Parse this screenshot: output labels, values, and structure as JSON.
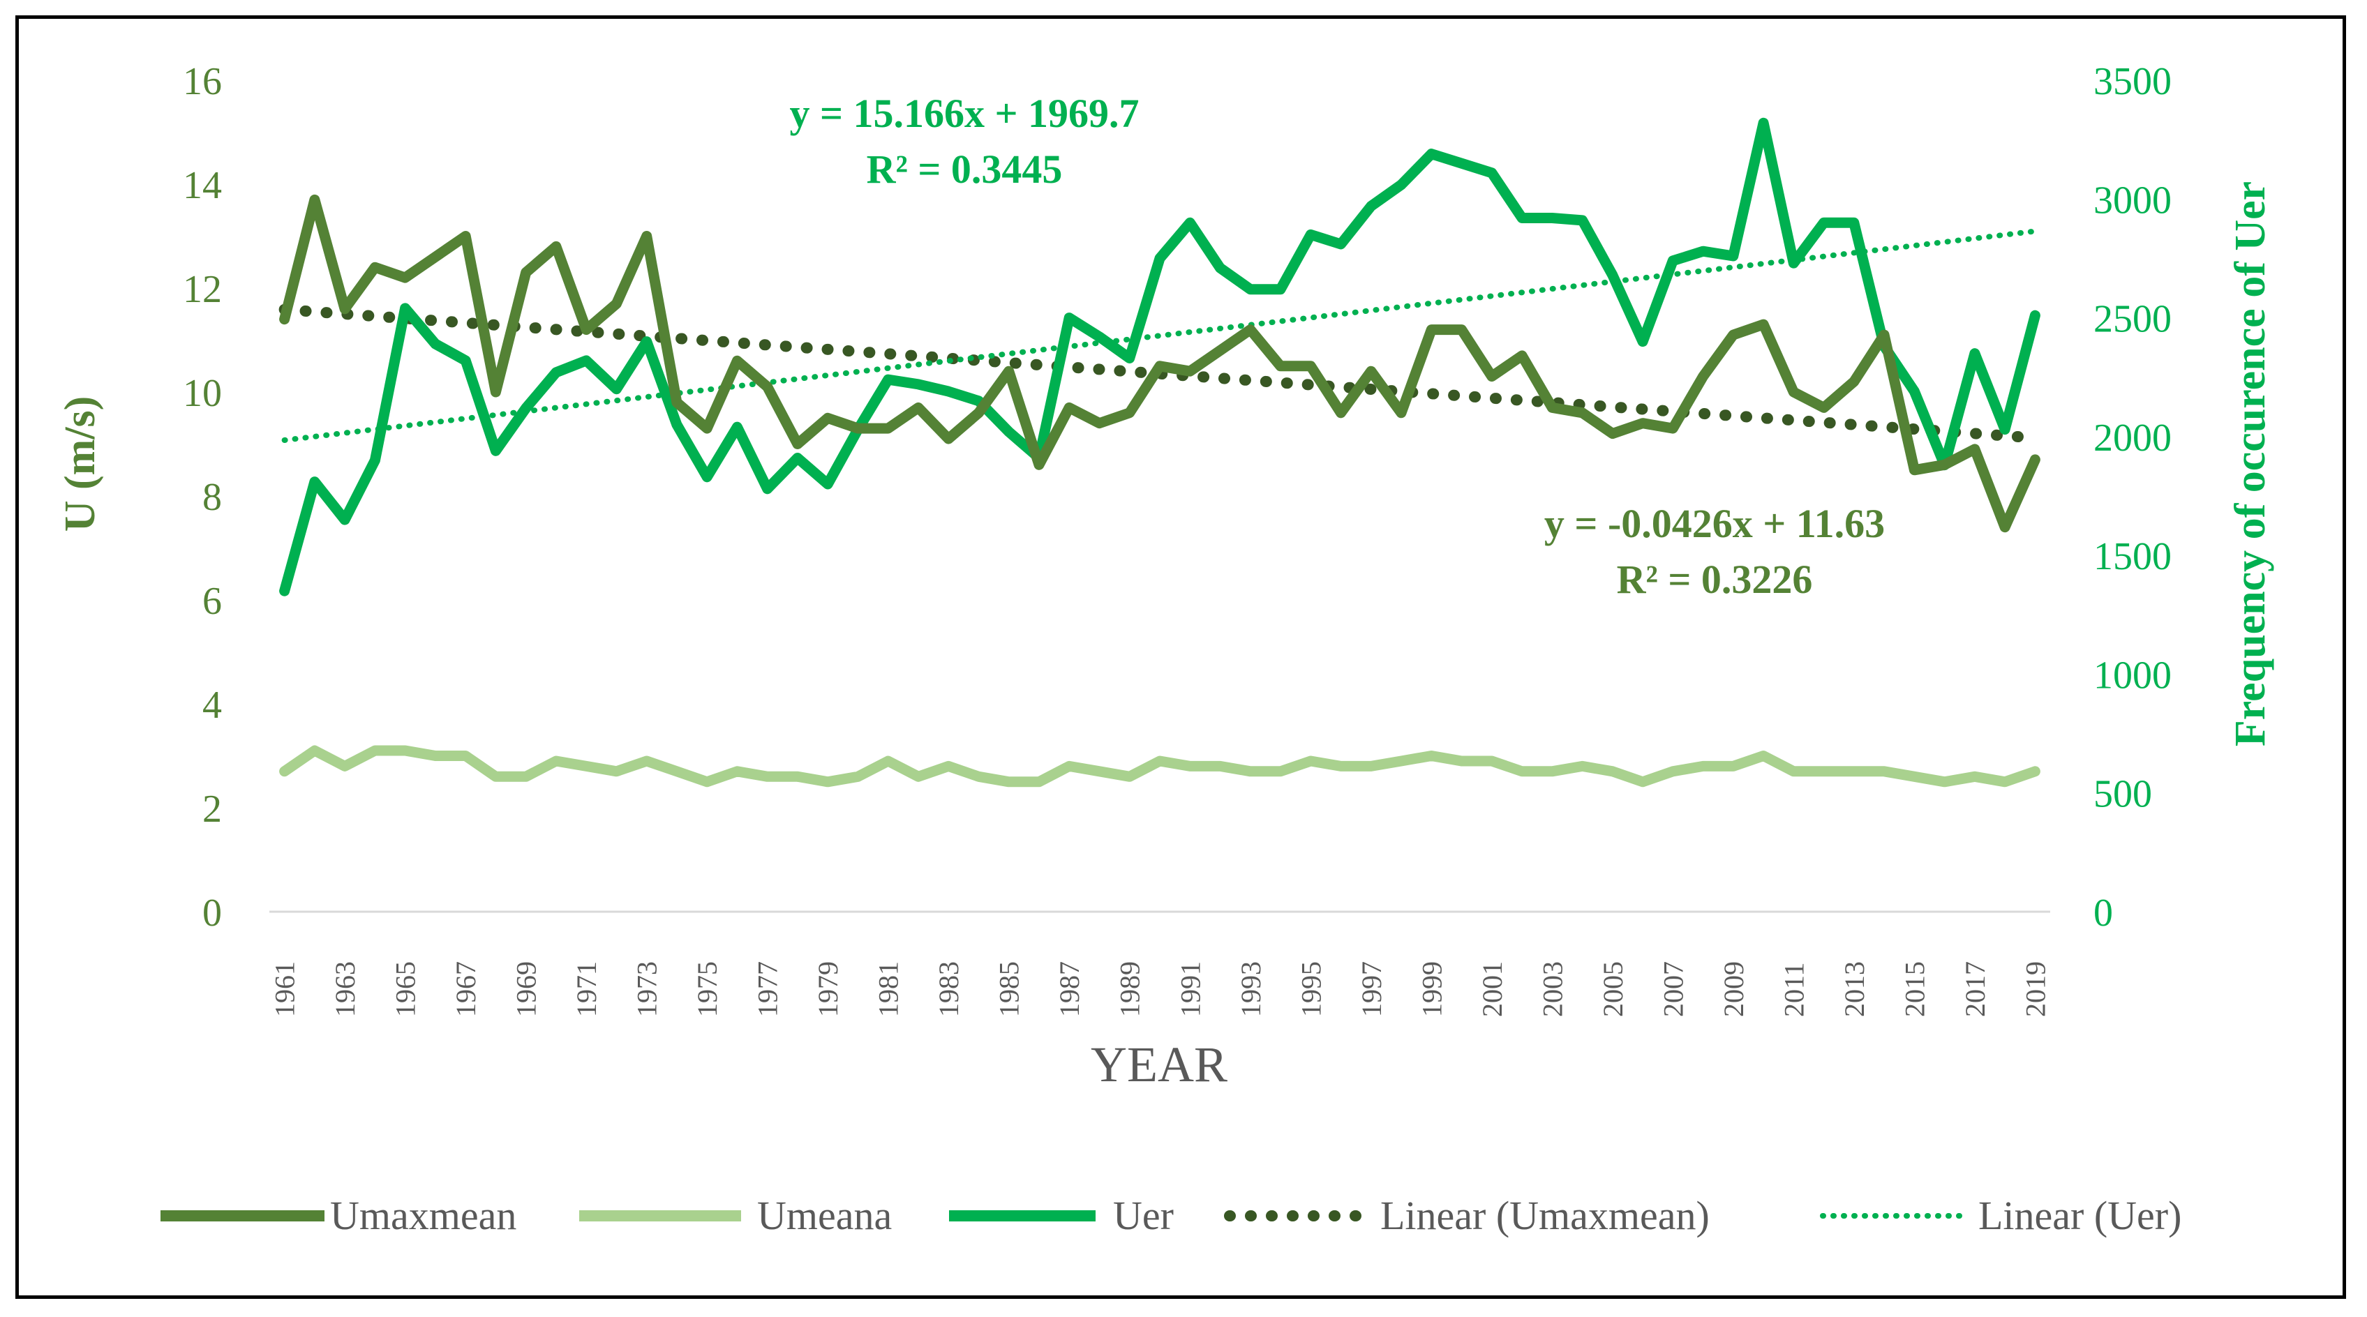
{
  "colors": {
    "umaxmean": "#548235",
    "umeana": "#a9d18e",
    "uer": "#00b050",
    "axis_left_text": "#548235",
    "axis_right_text": "#00b050",
    "axis_x_text": "#595959",
    "axis_line": "#d9d9d9"
  },
  "chart_data": {
    "type": "line",
    "xlabel": "YEAR",
    "ylabel_left": "U (m/s)",
    "ylabel_right": "Frequency of occurence of Uer",
    "ylim_left": [
      0,
      16
    ],
    "ylim_right": [
      0,
      3500
    ],
    "y_ticks_left": [
      "0",
      "2",
      "4",
      "6",
      "8",
      "10",
      "12",
      "14",
      "16"
    ],
    "y_ticks_right": [
      "0",
      "500",
      "1000",
      "1500",
      "2000",
      "2500",
      "3000",
      "3500"
    ],
    "x_tick_labels": [
      "1961",
      "1963",
      "1965",
      "1967",
      "1969",
      "1971",
      "1973",
      "1975",
      "1977",
      "1979",
      "1981",
      "1983",
      "1985",
      "1987",
      "1989",
      "1991",
      "1993",
      "1995",
      "1997",
      "1999",
      "2001",
      "2003",
      "2005",
      "2007",
      "2009",
      "2011",
      "2013",
      "2015",
      "2017",
      "2019"
    ],
    "x": [
      1961,
      1962,
      1963,
      1964,
      1965,
      1966,
      1967,
      1968,
      1969,
      1970,
      1971,
      1972,
      1973,
      1974,
      1975,
      1976,
      1977,
      1978,
      1979,
      1980,
      1981,
      1982,
      1983,
      1984,
      1985,
      1986,
      1987,
      1988,
      1989,
      1990,
      1991,
      1992,
      1993,
      1994,
      1995,
      1996,
      1997,
      1998,
      1999,
      2000,
      2001,
      2002,
      2003,
      2004,
      2005,
      2006,
      2007,
      2008,
      2009,
      2010,
      2011,
      2012,
      2013,
      2014,
      2015,
      2016,
      2017,
      2018,
      2019
    ],
    "series": [
      {
        "name": "Umaxmean",
        "axis": "left",
        "values": [
          11.4,
          13.7,
          11.6,
          12.4,
          12.2,
          12.6,
          13.0,
          10.0,
          12.3,
          12.8,
          11.2,
          11.7,
          13.0,
          9.8,
          9.3,
          10.6,
          10.1,
          9.0,
          9.5,
          9.3,
          9.3,
          9.7,
          9.1,
          9.6,
          10.4,
          8.6,
          9.7,
          9.4,
          9.6,
          10.5,
          10.4,
          10.8,
          11.2,
          10.5,
          10.5,
          9.6,
          10.4,
          9.6,
          11.2,
          11.2,
          10.3,
          10.7,
          9.7,
          9.6,
          9.2,
          9.4,
          9.3,
          10.3,
          11.1,
          11.3,
          10.0,
          9.7,
          10.2,
          11.1,
          8.5,
          8.6,
          8.9,
          7.4,
          8.7
        ]
      },
      {
        "name": "Umeana",
        "axis": "left",
        "values": [
          2.7,
          3.1,
          2.8,
          3.1,
          3.1,
          3.0,
          3.0,
          2.6,
          2.6,
          2.9,
          2.8,
          2.7,
          2.9,
          2.7,
          2.5,
          2.7,
          2.6,
          2.6,
          2.5,
          2.6,
          2.9,
          2.6,
          2.8,
          2.6,
          2.5,
          2.5,
          2.8,
          2.7,
          2.6,
          2.9,
          2.8,
          2.8,
          2.7,
          2.7,
          2.9,
          2.8,
          2.8,
          2.9,
          3.0,
          2.9,
          2.9,
          2.7,
          2.7,
          2.8,
          2.7,
          2.5,
          2.7,
          2.8,
          2.8,
          3.0,
          2.7,
          2.7,
          2.7,
          2.7,
          2.6,
          2.5,
          2.6,
          2.5,
          2.7
        ]
      },
      {
        "name": "Uer",
        "axis": "right",
        "values": [
          1350,
          1810,
          1650,
          1900,
          2540,
          2390,
          2320,
          1940,
          2120,
          2270,
          2320,
          2200,
          2400,
          2050,
          1830,
          2040,
          1780,
          1910,
          1800,
          2030,
          2240,
          2220,
          2190,
          2150,
          2020,
          1910,
          2500,
          2420,
          2330,
          2750,
          2900,
          2710,
          2620,
          2620,
          2850,
          2810,
          2970,
          3060,
          3190,
          3150,
          3110,
          2920,
          2920,
          2910,
          2680,
          2400,
          2740,
          2780,
          2760,
          3320,
          2730,
          2900,
          2900,
          2380,
          2190,
          1880,
          2350,
          2030,
          2510
        ]
      }
    ],
    "trendlines": [
      {
        "name": "Linear (Umaxmean)",
        "axis": "left",
        "slope": -0.0426,
        "intercept": 11.63
      },
      {
        "name": "Linear (Uer)",
        "axis": "right",
        "slope": 15.166,
        "intercept": 1969.7
      }
    ],
    "annotations": {
      "uer_equation": "y = 15.166x + 1969.7",
      "uer_r2": "R² = 0.3445",
      "umax_equation": "y = -0.0426x + 11.63",
      "umax_r2": "R² = 0.3226"
    },
    "legend": {
      "position": "bottom",
      "items": [
        "Umaxmean",
        "Umeana",
        "Uer",
        "Linear (Umaxmean)",
        "Linear (Uer)"
      ]
    }
  }
}
